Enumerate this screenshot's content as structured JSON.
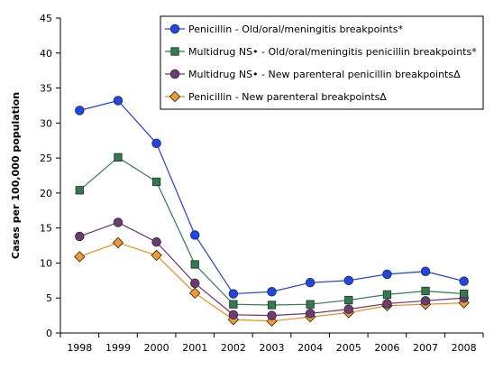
{
  "chart_data": {
    "type": "line",
    "title": "",
    "xlabel": "",
    "ylabel": "Cases per 100,000 population",
    "ylim": [
      0,
      45
    ],
    "yticks": [
      0,
      5,
      10,
      15,
      20,
      25,
      30,
      35,
      40,
      45
    ],
    "categories": [
      "1998",
      "1999",
      "2000",
      "2001",
      "2002",
      "2003",
      "2004",
      "2005",
      "2006",
      "2007",
      "2008"
    ],
    "grid": false,
    "legend_position": "top-right",
    "series": [
      {
        "name": "Penicillin - Old/oral/meningitis breakpoints*",
        "marker": "circle",
        "color": "#1a3fe6",
        "fill": "#1f45ee",
        "values": [
          31.8,
          33.2,
          27.1,
          14.0,
          5.6,
          5.9,
          7.2,
          7.5,
          8.4,
          8.8,
          7.4
        ]
      },
      {
        "name": "Multidrug NS• - Old/oral/meningitis penicillin breakpoints*",
        "marker": "square",
        "color": "#2e7b4a",
        "fill": "#2e7d4f",
        "values": [
          20.4,
          25.1,
          21.6,
          9.8,
          4.1,
          4.0,
          4.1,
          4.7,
          5.5,
          6.0,
          5.6
        ]
      },
      {
        "name": "Multidrug NS• - New parenteral penicillin breakpointsΔ",
        "marker": "circle",
        "color": "#6b3470",
        "fill": "#6f3a74",
        "values": [
          13.8,
          15.8,
          13.0,
          7.1,
          2.6,
          2.5,
          2.8,
          3.4,
          4.2,
          4.6,
          5.0
        ]
      },
      {
        "name": "Penicillin - New parenteral breakpointsΔ",
        "marker": "diamond",
        "color": "#f08a17",
        "fill": "#f49b2c",
        "values": [
          10.9,
          12.9,
          11.1,
          5.7,
          1.9,
          1.7,
          2.3,
          2.9,
          3.9,
          4.1,
          4.3
        ]
      }
    ]
  }
}
